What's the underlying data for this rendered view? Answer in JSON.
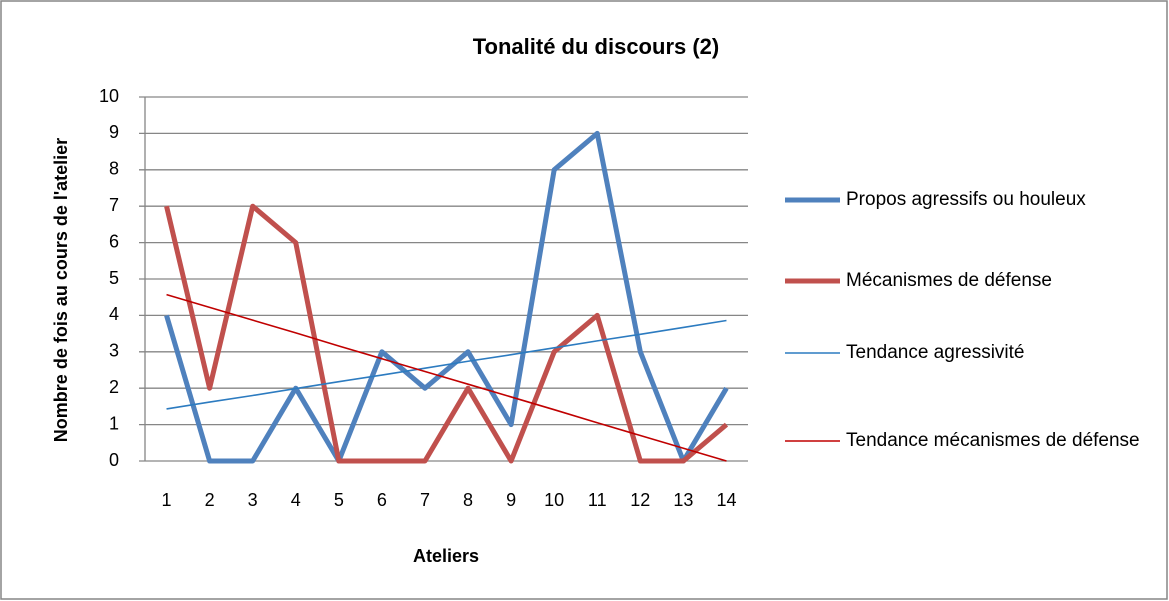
{
  "chart_data": {
    "type": "line",
    "title": "Tonalité du discours (2)",
    "x_label": "Ateliers",
    "y_label": "Nombre de fois au cours de l'atelier",
    "categories": [
      "1",
      "2",
      "3",
      "4",
      "5",
      "6",
      "7",
      "8",
      "9",
      "10",
      "11",
      "12",
      "13",
      "14"
    ],
    "series": [
      {
        "name": "Propos agressifs ou houleux",
        "color": "#4f81bd",
        "width": 5,
        "values": [
          4,
          0,
          0,
          2,
          0,
          3,
          2,
          3,
          1,
          8,
          9,
          3,
          0,
          2
        ]
      },
      {
        "name": "Mécanismes de défense",
        "color": "#c0504d",
        "width": 5,
        "values": [
          7,
          2,
          7,
          6,
          0,
          0,
          0,
          2,
          0,
          3,
          4,
          0,
          0,
          1
        ]
      },
      {
        "name": "Tendance agressivité",
        "color": "#2c7bc0",
        "width": 1.6,
        "values": [
          1.43,
          1.62,
          1.8,
          1.99,
          2.18,
          2.36,
          2.55,
          2.74,
          2.92,
          3.11,
          3.3,
          3.48,
          3.67,
          3.86
        ]
      },
      {
        "name": "Tendance mécanismes de défense",
        "color": "#c00000",
        "width": 1.6,
        "values": [
          4.57,
          4.22,
          3.87,
          3.52,
          3.16,
          2.81,
          2.46,
          2.11,
          1.76,
          1.41,
          1.05,
          0.7,
          0.35,
          0.0
        ]
      }
    ],
    "ylim": [
      0,
      10
    ],
    "yticks": [
      0,
      1,
      2,
      3,
      4,
      5,
      6,
      7,
      8,
      9,
      10
    ],
    "grid": true,
    "legend": "right"
  }
}
